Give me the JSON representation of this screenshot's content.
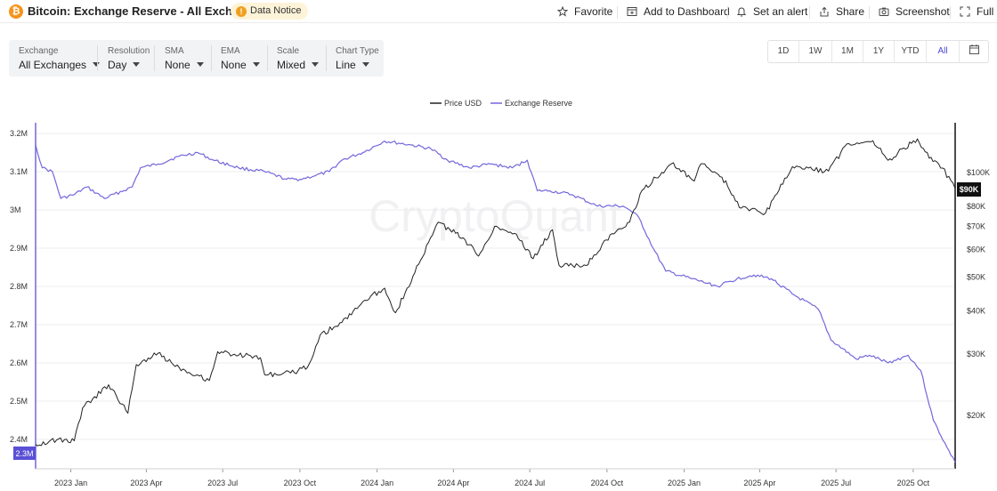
{
  "header": {
    "logo_glyph": "₿",
    "title": "Bitcoin: Exchange Reserve - All Exchanges",
    "notice_icon": "!",
    "notice": "Data Notice",
    "actions": {
      "favorite": "Favorite",
      "dashboard": "Add to Dashboard",
      "alert": "Set an alert",
      "share": "Share",
      "screenshot": "Screenshot",
      "full": "Full"
    }
  },
  "toolbar": {
    "exchange": {
      "label": "Exchange",
      "value": "All Exchanges"
    },
    "resolution": {
      "label": "Resolution",
      "value": "Day"
    },
    "sma": {
      "label": "SMA",
      "value": "None"
    },
    "ema": {
      "label": "EMA",
      "value": "None"
    },
    "scale": {
      "label": "Scale",
      "value": "Mixed"
    },
    "chart_type": {
      "label": "Chart Type",
      "value": "Line"
    }
  },
  "ranges": {
    "d1": "1D",
    "w1": "1W",
    "m1": "1M",
    "y1": "1Y",
    "ytd": "YTD",
    "all": "All",
    "active": "All"
  },
  "icons": {
    "calendar": "calendar-icon",
    "favorite": "star-icon",
    "dashboard": "dashboard-icon",
    "alert": "bell-icon",
    "share": "share-icon",
    "screenshot": "camera-icon",
    "full": "fullscreen-icon"
  },
  "watermark": "CryptoQuant",
  "chart_data": {
    "type": "line",
    "legend": {
      "position": "top-center",
      "items": [
        "Price USD",
        "Exchange Reserve"
      ]
    },
    "x_ticks": [
      "2023 Jan",
      "2023 Apr",
      "2023 Jul",
      "2023 Oct",
      "2024 Jan",
      "2024 Apr",
      "2024 Jul",
      "2024 Oct",
      "2025 Jan",
      "2025 Apr",
      "2025 Jul",
      "2025 Oct"
    ],
    "x_range": [
      "2022-11-20",
      "2025-11-20"
    ],
    "y_left": {
      "ticks": [
        "3.2M",
        "3.1M",
        "3M",
        "2.9M",
        "2.8M",
        "2.7M",
        "2.6M",
        "2.5M",
        "2.4M"
      ],
      "range": [
        2300000,
        3200000
      ],
      "current_label": "2.3M"
    },
    "y_right": {
      "scale": "log",
      "ticks": [
        "$100K",
        "$80K",
        "$70K",
        "$60K",
        "$50K",
        "$40K",
        "$30K",
        "$20K"
      ],
      "range": [
        15000,
        130000
      ],
      "current_label": "$90K"
    },
    "grid": true,
    "colors": {
      "price": "#222222",
      "reserve": "#7367dc",
      "badge_reserve": "#5a4fd6",
      "badge_price": "#111111"
    },
    "series": [
      {
        "name": "Price USD",
        "axis": "right",
        "points": [
          [
            "2022-11-20",
            16500
          ],
          [
            "2022-12-15",
            17000
          ],
          [
            "2023-01-05",
            16900
          ],
          [
            "2023-01-15",
            21000
          ],
          [
            "2023-02-15",
            24500
          ],
          [
            "2023-03-10",
            20300
          ],
          [
            "2023-03-20",
            28000
          ],
          [
            "2023-04-15",
            30200
          ],
          [
            "2023-05-10",
            27500
          ],
          [
            "2023-06-15",
            25200
          ],
          [
            "2023-06-25",
            30500
          ],
          [
            "2023-07-15",
            30000
          ],
          [
            "2023-08-15",
            29300
          ],
          [
            "2023-08-20",
            26200
          ],
          [
            "2023-09-20",
            26500
          ],
          [
            "2023-10-10",
            27500
          ],
          [
            "2023-10-25",
            34000
          ],
          [
            "2023-11-20",
            37000
          ],
          [
            "2023-12-15",
            42500
          ],
          [
            "2024-01-10",
            46500
          ],
          [
            "2024-01-23",
            39500
          ],
          [
            "2024-02-15",
            51500
          ],
          [
            "2024-03-14",
            72000
          ],
          [
            "2024-04-15",
            64000
          ],
          [
            "2024-05-01",
            57500
          ],
          [
            "2024-05-20",
            70000
          ],
          [
            "2024-06-15",
            66500
          ],
          [
            "2024-07-05",
            56500
          ],
          [
            "2024-07-28",
            68500
          ],
          [
            "2024-08-05",
            54000
          ],
          [
            "2024-09-06",
            54000
          ],
          [
            "2024-09-30",
            64000
          ],
          [
            "2024-10-28",
            72000
          ],
          [
            "2024-11-12",
            89000
          ],
          [
            "2024-12-17",
            106000
          ],
          [
            "2025-01-13",
            94500
          ],
          [
            "2025-01-21",
            106000
          ],
          [
            "2025-02-15",
            97000
          ],
          [
            "2025-03-10",
            79000
          ],
          [
            "2025-04-08",
            76500
          ],
          [
            "2025-05-10",
            104000
          ],
          [
            "2025-06-22",
            101000
          ],
          [
            "2025-07-14",
            121000
          ],
          [
            "2025-08-14",
            123500
          ],
          [
            "2025-09-01",
            108500
          ],
          [
            "2025-10-06",
            125000
          ],
          [
            "2025-10-20",
            110000
          ],
          [
            "2025-11-05",
            103000
          ],
          [
            "2025-11-20",
            90000
          ]
        ]
      },
      {
        "name": "Exchange Reserve",
        "axis": "left",
        "points": [
          [
            "2022-11-20",
            3170000
          ],
          [
            "2022-11-28",
            3110000
          ],
          [
            "2022-12-10",
            3100000
          ],
          [
            "2022-12-20",
            3030000
          ],
          [
            "2023-01-05",
            3040000
          ],
          [
            "2023-01-20",
            3060000
          ],
          [
            "2023-02-10",
            3030000
          ],
          [
            "2023-03-15",
            3060000
          ],
          [
            "2023-03-25",
            3110000
          ],
          [
            "2023-04-15",
            3120000
          ],
          [
            "2023-05-10",
            3140000
          ],
          [
            "2023-06-01",
            3150000
          ],
          [
            "2023-06-20",
            3130000
          ],
          [
            "2023-07-20",
            3110000
          ],
          [
            "2023-08-20",
            3100000
          ],
          [
            "2023-09-15",
            3080000
          ],
          [
            "2023-10-01",
            3080000
          ],
          [
            "2023-10-20",
            3090000
          ],
          [
            "2023-11-05",
            3100000
          ],
          [
            "2023-11-20",
            3130000
          ],
          [
            "2023-12-15",
            3150000
          ],
          [
            "2024-01-10",
            3180000
          ],
          [
            "2024-02-10",
            3170000
          ],
          [
            "2024-03-05",
            3160000
          ],
          [
            "2024-03-25",
            3130000
          ],
          [
            "2024-04-20",
            3110000
          ],
          [
            "2024-05-15",
            3120000
          ],
          [
            "2024-06-10",
            3110000
          ],
          [
            "2024-06-28",
            3130000
          ],
          [
            "2024-07-10",
            3050000
          ],
          [
            "2024-07-25",
            3050000
          ],
          [
            "2024-08-20",
            3040000
          ],
          [
            "2024-09-20",
            3010000
          ],
          [
            "2024-10-20",
            3010000
          ],
          [
            "2024-10-28",
            3000000
          ],
          [
            "2024-11-08",
            2980000
          ],
          [
            "2024-11-25",
            2900000
          ],
          [
            "2024-12-10",
            2840000
          ],
          [
            "2025-01-10",
            2820000
          ],
          [
            "2025-02-10",
            2800000
          ],
          [
            "2025-03-05",
            2820000
          ],
          [
            "2025-03-25",
            2830000
          ],
          [
            "2025-04-15",
            2820000
          ],
          [
            "2025-05-10",
            2780000
          ],
          [
            "2025-06-10",
            2740000
          ],
          [
            "2025-06-25",
            2660000
          ],
          [
            "2025-07-25",
            2610000
          ],
          [
            "2025-08-10",
            2620000
          ],
          [
            "2025-09-01",
            2600000
          ],
          [
            "2025-09-25",
            2620000
          ],
          [
            "2025-10-10",
            2580000
          ],
          [
            "2025-10-25",
            2450000
          ],
          [
            "2025-11-10",
            2380000
          ],
          [
            "2025-11-20",
            2340000
          ]
        ]
      }
    ]
  }
}
